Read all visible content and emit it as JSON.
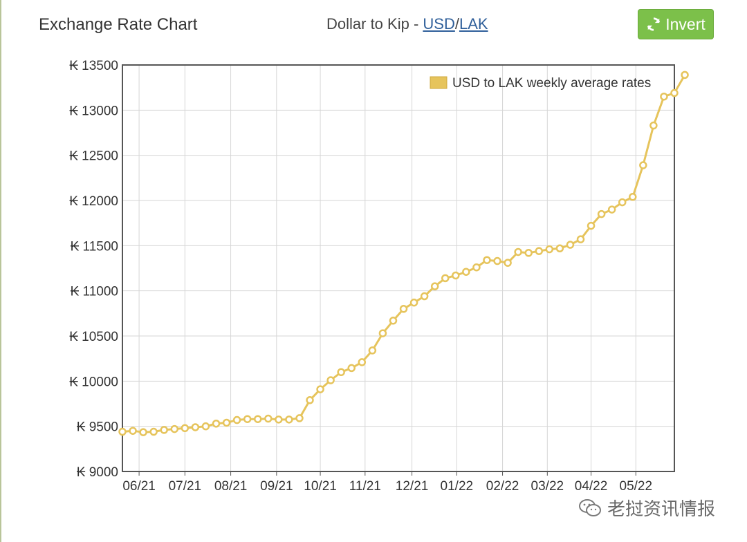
{
  "header": {
    "title": "Exchange Rate Chart",
    "subtitle_prefix": "Dollar to Kip - ",
    "link_usd": "USD",
    "separator": "/",
    "link_lak": "LAK",
    "invert_label": "Invert"
  },
  "watermark": {
    "text": "老挝资讯情报"
  },
  "colors": {
    "line": "#e6c45c",
    "marker_fill": "#ffffff",
    "button": "#7cc04a",
    "grid": "#d6d6d6",
    "axis": "#555555"
  },
  "chart_data": {
    "type": "line",
    "title": "",
    "legend": "USD to LAK weekly average rates",
    "legend_position": "top-right",
    "currency_prefix": "₭",
    "ylim": [
      9000,
      13500
    ],
    "yticks": [
      9000,
      9500,
      10000,
      10500,
      11000,
      11500,
      12000,
      12500,
      13000,
      13500
    ],
    "x_labels": [
      "06/21",
      "07/21",
      "08/21",
      "09/21",
      "10/21",
      "11/21",
      "12/21",
      "01/22",
      "02/22",
      "03/22",
      "04/22",
      "05/22"
    ],
    "x_label_positions": [
      1.6,
      6.0,
      10.4,
      14.8,
      19.0,
      23.3,
      27.8,
      32.1,
      36.5,
      40.8,
      45.0,
      49.3
    ],
    "x_range": [
      0,
      53
    ],
    "series": [
      {
        "name": "USD to LAK weekly average rates",
        "values": [
          9440,
          9450,
          9435,
          9440,
          9460,
          9470,
          9480,
          9490,
          9500,
          9530,
          9540,
          9570,
          9580,
          9580,
          9585,
          9575,
          9575,
          9590,
          9790,
          9910,
          10010,
          10100,
          10145,
          10210,
          10340,
          10530,
          10670,
          10800,
          10870,
          10940,
          11050,
          11140,
          11170,
          11210,
          11260,
          11340,
          11330,
          11310,
          11430,
          11420,
          11440,
          11460,
          11470,
          11510,
          11570,
          11720,
          11850,
          11900,
          11980,
          12040,
          12390,
          12830,
          13150,
          13190,
          13390
        ]
      }
    ]
  }
}
